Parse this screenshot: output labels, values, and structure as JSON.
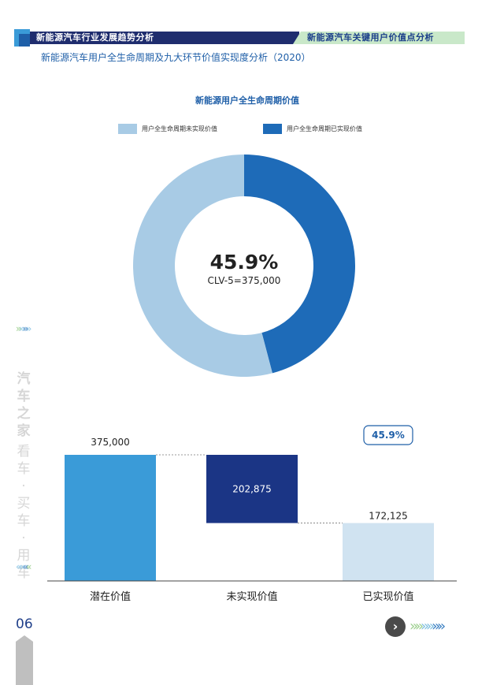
{
  "header": {
    "left_title": "新能源汽车行业发展趋势分析",
    "right_title": "新能源汽车关键用户价值点分析",
    "subtitle": "新能源汽车用户全生命周期及九大环节价值实现度分析（2020）",
    "brand_vertical": "汽车之家",
    "slogan_vertical": "看车·买车·用车",
    "page_number": "06"
  },
  "colors": {
    "unrealized": "#a8cbe5",
    "realized": "#1e6bb8",
    "potential_bar": "#3a9bd8",
    "unrealized_bar": "#1b3585",
    "realized_bar": "#d0e3f1",
    "header_navy": "#1f2d6e",
    "header_green": "#c9e8c9"
  },
  "chart_data": [
    {
      "type": "pie",
      "title": "新能源用户全生命周期价值",
      "labels": [
        "用户全生命周期未实现价值",
        "用户全生命周期已实现价值"
      ],
      "values": [
        54.1,
        45.9
      ],
      "unit": "%",
      "center_value": "45.9%",
      "center_label": "CLV-5=375,000",
      "legend_position": "top"
    },
    {
      "type": "bar",
      "subtype": "waterfall",
      "categories": [
        "潜在价值",
        "未实现价值",
        "已实现价值"
      ],
      "values": [
        375000,
        202875,
        172125
      ],
      "value_labels": [
        "375,000",
        "202,875",
        "172,125"
      ],
      "annotation": "45.9%",
      "ylim": [
        0,
        375000
      ]
    }
  ]
}
